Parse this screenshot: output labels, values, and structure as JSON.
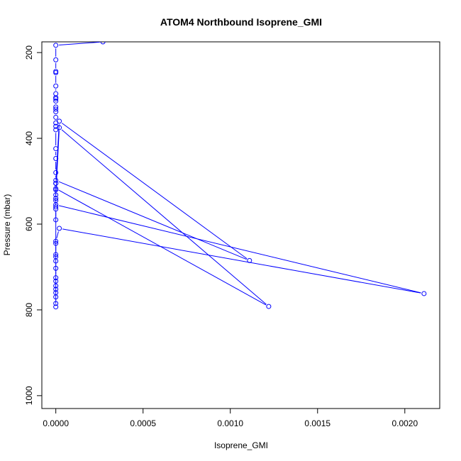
{
  "chart_data": {
    "type": "line",
    "title": "ATOM4 Northbound Isoprene_GMI",
    "xlabel": "Isoprene_GMI",
    "ylabel": "Pressure (mbar)",
    "xlim": [
      -8e-05,
      0.0022
    ],
    "ylim": [
      1030,
      175
    ],
    "y_reversed": true,
    "grid": false,
    "series_color": "#0000ff",
    "x_ticks": [
      0.0,
      0.0005,
      0.001,
      0.0015,
      0.002
    ],
    "x_tick_labels": [
      "0.0000",
      "0.0005",
      "0.0010",
      "0.0015",
      "0.0020"
    ],
    "y_ticks": [
      200,
      400,
      600,
      800,
      1000
    ],
    "y_tick_labels": [
      "200",
      "400",
      "600",
      "800",
      "1000"
    ],
    "series": [
      {
        "style": "line+points",
        "x": [
          0.00027,
          0.0,
          0.0,
          0.0,
          0.0,
          0.0,
          0.0,
          0.0,
          0.0,
          0.0,
          0.0,
          0.0,
          0.0,
          0.0,
          0.0,
          0.0,
          0.0,
          0.0,
          0.0,
          0.0,
          0.0,
          0.00111,
          2e-05,
          0.0,
          0.0,
          0.00122,
          2e-05,
          0.0,
          0.0,
          0.00211,
          2e-05,
          0.0,
          0.0,
          0.0,
          0.0,
          0.0,
          0.0,
          0.0,
          0.0,
          0.0,
          0.0,
          0.0,
          0.0,
          0.0,
          0.0,
          0.0,
          0.0,
          0.0,
          0.0,
          0.0,
          0.0,
          0.0
        ],
        "y": [
          175,
          183,
          217,
          244,
          247,
          278,
          296,
          305,
          308,
          313,
          327,
          332,
          338,
          351,
          364,
          372,
          380,
          424,
          447,
          480,
          498,
          685,
          360,
          505,
          517,
          792,
          375,
          532,
          555,
          762,
          610,
          640,
          645,
          671,
          676,
          686,
          703,
          725,
          733,
          744,
          752,
          760,
          770,
          785,
          793,
          560,
          540,
          505,
          520,
          545,
          565,
          590
        ]
      }
    ]
  }
}
